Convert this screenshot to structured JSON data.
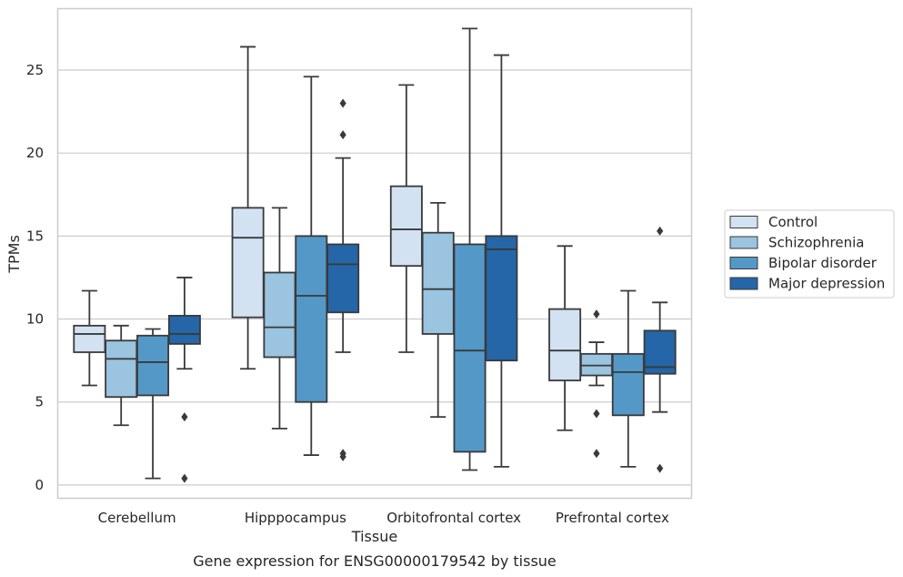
{
  "chart_data": {
    "type": "box",
    "title": "",
    "caption": "Gene expression for ENSG00000179542 by tissue",
    "xlabel": "Tissue",
    "ylabel": "TPMs",
    "ylim": [
      -0.8,
      28.7
    ],
    "yticks": [
      0,
      5,
      10,
      15,
      20,
      25
    ],
    "grid": "horizontal",
    "legend_position": "right",
    "categories": [
      "Cerebellum",
      "Hipppocampus",
      "Orbitofrontal cortex",
      "Prefrontal cortex"
    ],
    "series": [
      {
        "name": "Control",
        "color": "#d2e2f2",
        "boxes": [
          {
            "whislo": 6.0,
            "q1": 8.0,
            "med": 9.1,
            "q3": 9.6,
            "whishi": 11.7,
            "fliers": []
          },
          {
            "whislo": 7.0,
            "q1": 10.1,
            "med": 14.9,
            "q3": 16.7,
            "whishi": 26.4,
            "fliers": []
          },
          {
            "whislo": 8.0,
            "q1": 13.2,
            "med": 15.4,
            "q3": 18.0,
            "whishi": 24.1,
            "fliers": []
          },
          {
            "whislo": 3.3,
            "q1": 6.3,
            "med": 8.1,
            "q3": 10.6,
            "whishi": 14.4,
            "fliers": []
          }
        ]
      },
      {
        "name": "Schizophrenia",
        "color": "#9ac4df",
        "boxes": [
          {
            "whislo": 3.6,
            "q1": 5.3,
            "med": 7.6,
            "q3": 8.7,
            "whishi": 9.6,
            "fliers": []
          },
          {
            "whislo": 3.4,
            "q1": 7.7,
            "med": 9.5,
            "q3": 12.8,
            "whishi": 16.7,
            "fliers": []
          },
          {
            "whislo": 4.1,
            "q1": 9.1,
            "med": 11.8,
            "q3": 15.2,
            "whishi": 17.0,
            "fliers": []
          },
          {
            "whislo": 6.0,
            "q1": 6.6,
            "med": 7.2,
            "q3": 7.9,
            "whishi": 8.6,
            "fliers": [
              10.3,
              4.3,
              1.9
            ]
          }
        ]
      },
      {
        "name": "Bipolar disorder",
        "color": "#5498c7",
        "boxes": [
          {
            "whislo": 0.4,
            "q1": 5.4,
            "med": 7.4,
            "q3": 9.0,
            "whishi": 9.4,
            "fliers": []
          },
          {
            "whislo": 1.8,
            "q1": 5.0,
            "med": 11.4,
            "q3": 15.0,
            "whishi": 24.6,
            "fliers": []
          },
          {
            "whislo": 0.9,
            "q1": 2.0,
            "med": 8.1,
            "q3": 14.5,
            "whishi": 27.5,
            "fliers": []
          },
          {
            "whislo": 1.1,
            "q1": 4.2,
            "med": 6.8,
            "q3": 7.9,
            "whishi": 11.7,
            "fliers": []
          }
        ]
      },
      {
        "name": "Major depression",
        "color": "#2466a7",
        "boxes": [
          {
            "whislo": 7.0,
            "q1": 8.5,
            "med": 9.1,
            "q3": 10.2,
            "whishi": 12.5,
            "fliers": [
              4.1,
              0.4
            ]
          },
          {
            "whislo": 8.0,
            "q1": 10.4,
            "med": 13.3,
            "q3": 14.5,
            "whishi": 19.7,
            "fliers": [
              23.0,
              21.1,
              1.9,
              1.7
            ]
          },
          {
            "whislo": 1.1,
            "q1": 7.5,
            "med": 14.2,
            "q3": 15.0,
            "whishi": 25.9,
            "fliers": []
          },
          {
            "whislo": 4.4,
            "q1": 6.7,
            "med": 7.1,
            "q3": 9.3,
            "whishi": 11.0,
            "fliers": [
              15.3,
              1.0
            ]
          }
        ]
      }
    ]
  }
}
